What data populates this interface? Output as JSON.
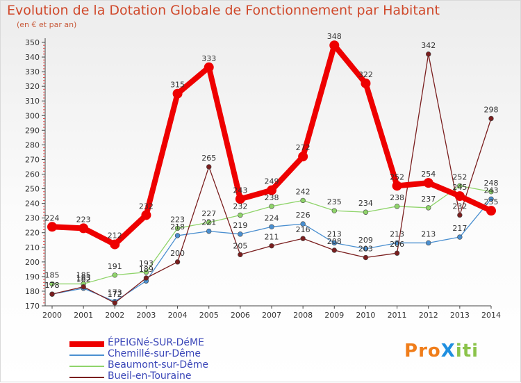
{
  "title": "Evolution de la Dotation Globale de Fonctionnement par Habitant",
  "subtitle": "(en € et par an)",
  "logo": {
    "text": "ProXiti",
    "letters": [
      "P",
      "r",
      "o",
      "X",
      "i",
      "t",
      "i"
    ],
    "colors": [
      "#f07d1a",
      "#f07d1a",
      "#f07d1a",
      "#1f8fe0",
      "#8bc34a",
      "#8bc34a",
      "#8bc34a"
    ]
  },
  "chart_data": {
    "type": "line",
    "x": [
      2000,
      2001,
      2002,
      2003,
      2004,
      2005,
      2006,
      2007,
      2008,
      2009,
      2010,
      2011,
      2012,
      2013,
      2014
    ],
    "ylim": [
      170,
      350
    ],
    "yticks": [
      170,
      180,
      190,
      200,
      210,
      220,
      230,
      240,
      250,
      260,
      270,
      280,
      290,
      300,
      310,
      320,
      330,
      340,
      350
    ],
    "grid": false,
    "legend_position": "bottom-left",
    "series": [
      {
        "name": "ÉPEIGNé-SUR-DéME",
        "color": "#ee0000",
        "style": "bold",
        "values": [
          224,
          223,
          212,
          232,
          315,
          333,
          243,
          249,
          272,
          348,
          322,
          252,
          254,
          245,
          235
        ],
        "labels": [
          "224",
          "223",
          "212",
          "232",
          "315",
          "333",
          "243",
          "249",
          "272",
          "348",
          "322",
          "252",
          "254",
          "245",
          "235"
        ]
      },
      {
        "name": "Chemillé-sur-Dême",
        "color": "#4a8fd0",
        "style": "thin",
        "values": [
          178,
          182,
          173,
          187,
          218,
          221,
          219,
          224,
          226,
          213,
          209,
          213,
          213,
          217,
          243
        ],
        "labels": [
          "178",
          "182",
          "173",
          "",
          "218",
          "221",
          "219",
          "224",
          "226",
          "213",
          "209",
          "213",
          "213",
          "217",
          "243"
        ]
      },
      {
        "name": "Beaumont-sur-Dême",
        "color": "#8fd46a",
        "style": "thin",
        "values": [
          185,
          185,
          191,
          193,
          223,
          227,
          232,
          238,
          242,
          235,
          234,
          238,
          237,
          252,
          248
        ],
        "labels": [
          "185",
          "185",
          "191",
          "193",
          "223",
          "227",
          "232",
          "238",
          "242",
          "235",
          "234",
          "238",
          "237",
          "252",
          "248"
        ]
      },
      {
        "name": "Bueil-en-Touraine",
        "color": "#7a1e1e",
        "style": "thin",
        "values": [
          178,
          183,
          172,
          189,
          200,
          265,
          205,
          211,
          216,
          208,
          203,
          206,
          342,
          232,
          298
        ],
        "labels": [
          "178",
          "183",
          "172",
          "189",
          "200",
          "265",
          "205",
          "211",
          "216",
          "208",
          "203",
          "206",
          "342",
          "232",
          "298"
        ]
      }
    ]
  }
}
